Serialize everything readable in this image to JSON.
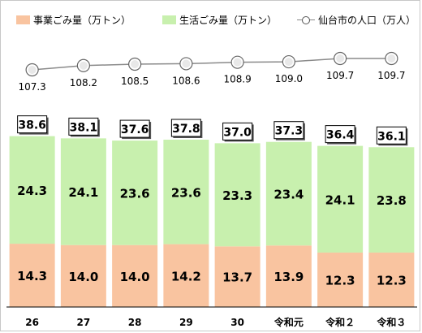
{
  "legend": {
    "business": "事業ごみ量（万トン）",
    "household": "生活ごみ量（万トン）",
    "population": "仙台市の人口（万人）"
  },
  "colors": {
    "business": "#f9c4a0",
    "household": "#c8f0ae",
    "line": "#8a8a8a",
    "axis": "#000000"
  },
  "chart_data": {
    "type": "bar",
    "stacked": true,
    "categories": [
      "26",
      "27",
      "28",
      "29",
      "30",
      "令和元",
      "令和２",
      "令和３"
    ],
    "series": [
      {
        "name": "事業ごみ量（万トン）",
        "values": [
          14.3,
          14.0,
          14.0,
          14.2,
          13.7,
          13.9,
          12.3,
          12.3
        ]
      },
      {
        "name": "生活ごみ量（万トン）",
        "values": [
          24.3,
          24.1,
          23.6,
          23.6,
          23.3,
          23.4,
          24.1,
          23.8
        ]
      }
    ],
    "totals": [
      38.6,
      38.1,
      37.6,
      37.8,
      37.0,
      37.3,
      36.4,
      36.1
    ],
    "line": {
      "name": "仙台市の人口（万人）",
      "type": "line",
      "values": [
        107.3,
        108.2,
        108.5,
        108.6,
        108.9,
        109.0,
        109.7,
        109.7
      ]
    },
    "ylim": [
      0,
      40
    ],
    "grid": false,
    "legend_position": "top"
  }
}
